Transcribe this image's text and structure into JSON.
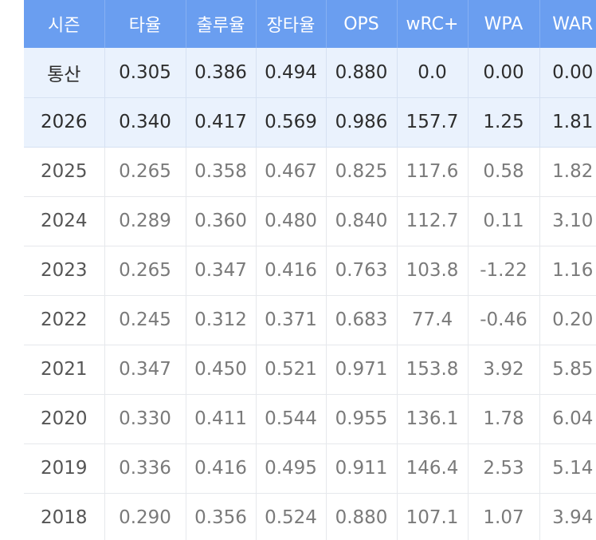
{
  "table": {
    "headers": [
      "시즌",
      "타율",
      "출루율",
      "장타율",
      "OPS",
      "wRC+",
      "WPA",
      "WAR"
    ],
    "highlight_color": "#eaf2fd",
    "header_color": "#6a9ef0",
    "rows": [
      [
        "통산",
        "0.305",
        "0.386",
        "0.494",
        "0.880",
        "0.0",
        "0.00",
        "0.00"
      ],
      [
        "2026",
        "0.340",
        "0.417",
        "0.569",
        "0.986",
        "157.7",
        "1.25",
        "1.81"
      ],
      [
        "2025",
        "0.265",
        "0.358",
        "0.467",
        "0.825",
        "117.6",
        "0.58",
        "1.82"
      ],
      [
        "2024",
        "0.289",
        "0.360",
        "0.480",
        "0.840",
        "112.7",
        "0.11",
        "3.10"
      ],
      [
        "2023",
        "0.265",
        "0.347",
        "0.416",
        "0.763",
        "103.8",
        "-1.22",
        "1.16"
      ],
      [
        "2022",
        "0.245",
        "0.312",
        "0.371",
        "0.683",
        "77.4",
        "-0.46",
        "0.20"
      ],
      [
        "2021",
        "0.347",
        "0.450",
        "0.521",
        "0.971",
        "153.8",
        "3.92",
        "5.85"
      ],
      [
        "2020",
        "0.330",
        "0.411",
        "0.544",
        "0.955",
        "136.1",
        "1.78",
        "6.04"
      ],
      [
        "2019",
        "0.336",
        "0.416",
        "0.495",
        "0.911",
        "146.4",
        "2.53",
        "5.14"
      ],
      [
        "2018",
        "0.290",
        "0.356",
        "0.524",
        "0.880",
        "107.1",
        "1.07",
        "3.94"
      ]
    ]
  }
}
